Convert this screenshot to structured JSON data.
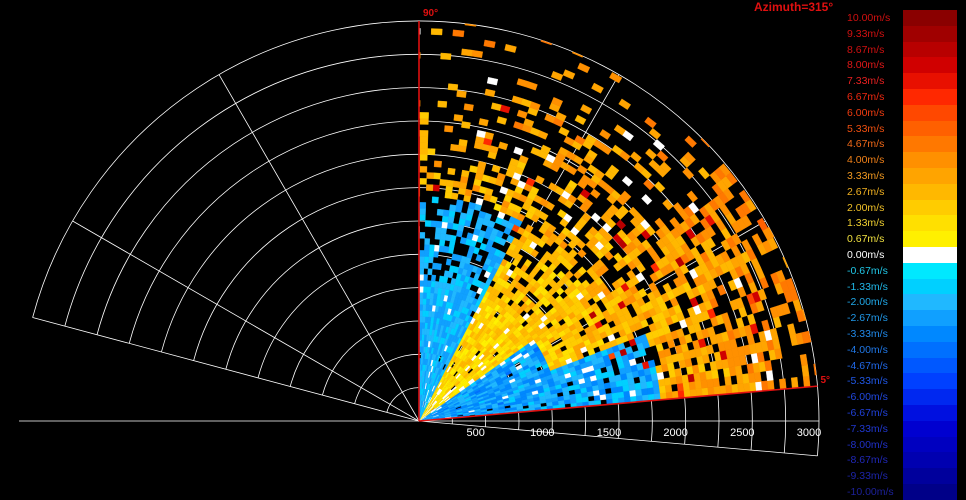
{
  "title": "Azimuth=315°",
  "chart_data": {
    "type": "polar-sector-heatmap",
    "angle_labels": {
      "start": "5°",
      "end": "90°"
    },
    "sector_degrees": [
      5,
      90
    ],
    "range_max": 3000,
    "range_ticks": [
      {
        "value": 500,
        "label": "500"
      },
      {
        "value": 1000,
        "label": "1000"
      },
      {
        "value": 1500,
        "label": "1500"
      },
      {
        "value": 2000,
        "label": "2000"
      },
      {
        "value": 2500,
        "label": "2500"
      },
      {
        "value": 3000,
        "label": "3000"
      }
    ],
    "colorbar": [
      {
        "label": "10.00m/s",
        "color": "#8a0000",
        "text": "#d01010"
      },
      {
        "label": "9.33m/s",
        "color": "#a00000",
        "text": "#d01010"
      },
      {
        "label": "8.67m/s",
        "color": "#b80000",
        "text": "#d01010"
      },
      {
        "label": "8.00m/s",
        "color": "#d00000",
        "text": "#e01818"
      },
      {
        "label": "7.33m/s",
        "color": "#e81000",
        "text": "#e82020"
      },
      {
        "label": "6.67m/s",
        "color": "#ff2800",
        "text": "#ee2810"
      },
      {
        "label": "6.00m/s",
        "color": "#ff4800",
        "text": "#f03c10"
      },
      {
        "label": "5.33m/s",
        "color": "#ff6000",
        "text": "#f05010"
      },
      {
        "label": "4.67m/s",
        "color": "#ff7800",
        "text": "#f06818"
      },
      {
        "label": "4.00m/s",
        "color": "#ff9000",
        "text": "#f08018"
      },
      {
        "label": "3.33m/s",
        "color": "#ffa400",
        "text": "#f09820"
      },
      {
        "label": "2.67m/s",
        "color": "#ffb800",
        "text": "#f0b020"
      },
      {
        "label": "2.00m/s",
        "color": "#ffcc00",
        "text": "#f0c028"
      },
      {
        "label": "1.33m/s",
        "color": "#ffe000",
        "text": "#f0d030"
      },
      {
        "label": "0.67m/s",
        "color": "#fff000",
        "text": "#f0e040"
      },
      {
        "label": "0.00m/s",
        "color": "#ffffff",
        "text": "#ffffff"
      },
      {
        "label": "-0.67m/s",
        "color": "#00e8ff",
        "text": "#20c8e8"
      },
      {
        "label": "-1.33m/s",
        "color": "#00d0ff",
        "text": "#20b8e8"
      },
      {
        "label": "-2.00m/s",
        "color": "#20b8ff",
        "text": "#20a8e8"
      },
      {
        "label": "-2.67m/s",
        "color": "#10a0ff",
        "text": "#2098e8"
      },
      {
        "label": "-3.33m/s",
        "color": "#0088ff",
        "text": "#2088e8"
      },
      {
        "label": "-4.00m/s",
        "color": "#0070ff",
        "text": "#2078e8"
      },
      {
        "label": "-4.67m/s",
        "color": "#0058ff",
        "text": "#2068e8"
      },
      {
        "label": "-5.33m/s",
        "color": "#0040ff",
        "text": "#2058e8"
      },
      {
        "label": "-6.00m/s",
        "color": "#0028f0",
        "text": "#2048e0"
      },
      {
        "label": "-6.67m/s",
        "color": "#0010e0",
        "text": "#2040d8"
      },
      {
        "label": "-7.33m/s",
        "color": "#0000d0",
        "text": "#2038d0"
      },
      {
        "label": "-8.00m/s",
        "color": "#0000c0",
        "text": "#2030c8"
      },
      {
        "label": "-8.67m/s",
        "color": "#0000b0",
        "text": "#2028b8"
      },
      {
        "label": "-9.33m/s",
        "color": "#00009c",
        "text": "#1c24a8"
      },
      {
        "label": "-10.00m/s",
        "color": "#000088",
        "text": "#1c2098"
      }
    ]
  }
}
